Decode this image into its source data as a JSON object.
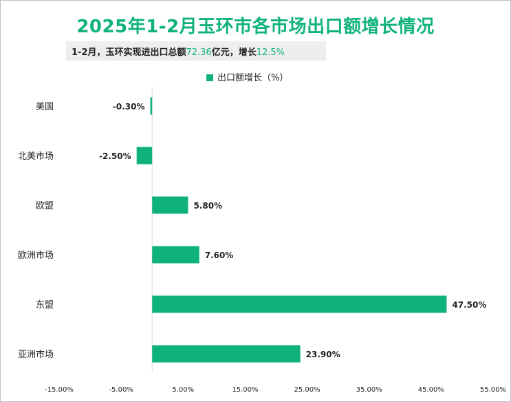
{
  "title": "2025年1-2月玉环市各市场出口额增长情况",
  "subtitle": {
    "prefix": "1-2月，玉环实现进出口总额",
    "total": "72.36",
    "middle": "亿元，增长",
    "growth": "12.5%"
  },
  "colors": {
    "accent": "#0fb37a"
  },
  "chart_data": {
    "type": "bar",
    "orientation": "horizontal",
    "categories": [
      "美国",
      "北美市场",
      "欧盟",
      "欧洲市场",
      "东盟",
      "亚洲市场"
    ],
    "series": [
      {
        "name": "出口额增长（%）",
        "values": [
          -0.3,
          -2.5,
          5.8,
          7.6,
          47.5,
          23.9
        ]
      }
    ],
    "data_labels": [
      "-0.30%",
      "-2.50%",
      "5.80%",
      "7.60%",
      "47.50%",
      "23.90%"
    ],
    "x_ticks": [
      -15,
      -5,
      5,
      15,
      25,
      35,
      45,
      55
    ],
    "x_tick_labels": [
      "-15.00%",
      "-5.00%",
      "5.00%",
      "15.00%",
      "25.00%",
      "35.00%",
      "45.00%",
      "55.00%"
    ],
    "xlim": [
      -15,
      55
    ],
    "legend": "top-center",
    "grid": false
  }
}
